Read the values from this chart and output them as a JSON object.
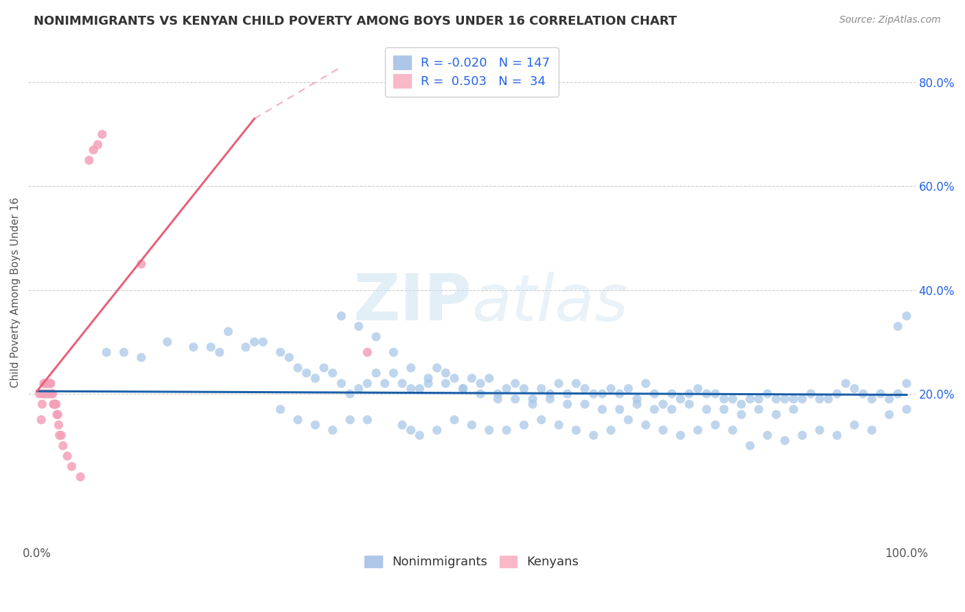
{
  "title": "NONIMMIGRANTS VS KENYAN CHILD POVERTY AMONG BOYS UNDER 16 CORRELATION CHART",
  "source": "Source: ZipAtlas.com",
  "ylabel": "Child Poverty Among Boys Under 16",
  "xlim": [
    -0.01,
    1.01
  ],
  "ylim": [
    -0.09,
    0.88
  ],
  "x_ticks": [
    0.0,
    0.1,
    0.2,
    0.3,
    0.4,
    0.5,
    0.6,
    0.7,
    0.8,
    0.9,
    1.0
  ],
  "x_tick_labels_show": [
    "0.0%",
    "",
    "",
    "",
    "",
    "",
    "",
    "",
    "",
    "",
    "100.0%"
  ],
  "y_ticks": [
    0.2,
    0.4,
    0.6,
    0.8
  ],
  "y_tick_labels": [
    "20.0%",
    "40.0%",
    "60.0%",
    "80.0%"
  ],
  "nonimmigrants_color": "#a8c8e8",
  "kenyans_color": "#f4a0b8",
  "trend_blue": "#1a5fa8",
  "trend_pink": "#e8607a",
  "watermark_color": "#d0e8f5",
  "background_color": "#ffffff",
  "grid_color": "#cccccc",
  "ni_x": [
    0.08,
    0.1,
    0.12,
    0.15,
    0.18,
    0.2,
    0.21,
    0.22,
    0.24,
    0.25,
    0.26,
    0.28,
    0.29,
    0.3,
    0.31,
    0.32,
    0.33,
    0.34,
    0.35,
    0.36,
    0.37,
    0.38,
    0.39,
    0.4,
    0.41,
    0.42,
    0.43,
    0.44,
    0.45,
    0.46,
    0.47,
    0.48,
    0.49,
    0.5,
    0.51,
    0.52,
    0.53,
    0.54,
    0.55,
    0.56,
    0.57,
    0.58,
    0.59,
    0.6,
    0.61,
    0.62,
    0.63,
    0.64,
    0.65,
    0.66,
    0.67,
    0.68,
    0.69,
    0.7,
    0.71,
    0.72,
    0.73,
    0.74,
    0.75,
    0.76,
    0.77,
    0.78,
    0.79,
    0.8,
    0.81,
    0.82,
    0.83,
    0.84,
    0.85,
    0.86,
    0.87,
    0.88,
    0.89,
    0.9,
    0.91,
    0.92,
    0.93,
    0.94,
    0.95,
    0.96,
    0.97,
    0.98,
    0.99,
    1.0,
    0.28,
    0.3,
    0.32,
    0.34,
    0.36,
    0.38,
    0.42,
    0.43,
    0.44,
    0.46,
    0.48,
    0.5,
    0.52,
    0.54,
    0.56,
    0.58,
    0.6,
    0.62,
    0.64,
    0.66,
    0.68,
    0.7,
    0.72,
    0.74,
    0.76,
    0.78,
    0.8,
    0.82,
    0.84,
    0.86,
    0.88,
    0.9,
    0.92,
    0.94,
    0.96,
    0.98,
    1.0,
    0.35,
    0.37,
    0.39,
    0.41,
    0.43,
    0.45,
    0.47,
    0.49,
    0.51,
    0.53,
    0.55,
    0.57,
    0.59,
    0.61,
    0.63,
    0.65,
    0.67,
    0.69,
    0.71,
    0.73,
    0.75,
    0.77,
    0.79,
    0.81,
    0.83,
    0.85,
    0.87,
    0.99,
    1.0
  ],
  "ni_y": [
    0.28,
    0.28,
    0.27,
    0.3,
    0.29,
    0.29,
    0.28,
    0.32,
    0.29,
    0.3,
    0.3,
    0.28,
    0.27,
    0.25,
    0.24,
    0.23,
    0.25,
    0.24,
    0.22,
    0.2,
    0.21,
    0.22,
    0.24,
    0.22,
    0.24,
    0.22,
    0.21,
    0.21,
    0.22,
    0.25,
    0.24,
    0.23,
    0.21,
    0.23,
    0.22,
    0.23,
    0.2,
    0.21,
    0.22,
    0.21,
    0.19,
    0.21,
    0.2,
    0.22,
    0.2,
    0.22,
    0.21,
    0.2,
    0.2,
    0.21,
    0.2,
    0.21,
    0.19,
    0.22,
    0.2,
    0.18,
    0.2,
    0.19,
    0.2,
    0.21,
    0.2,
    0.2,
    0.19,
    0.19,
    0.18,
    0.19,
    0.19,
    0.2,
    0.19,
    0.19,
    0.19,
    0.19,
    0.2,
    0.19,
    0.19,
    0.2,
    0.22,
    0.21,
    0.2,
    0.19,
    0.2,
    0.19,
    0.2,
    0.22,
    0.17,
    0.15,
    0.14,
    0.13,
    0.15,
    0.15,
    0.14,
    0.13,
    0.12,
    0.13,
    0.15,
    0.14,
    0.13,
    0.13,
    0.14,
    0.15,
    0.14,
    0.13,
    0.12,
    0.13,
    0.15,
    0.14,
    0.13,
    0.12,
    0.13,
    0.14,
    0.13,
    0.1,
    0.12,
    0.11,
    0.12,
    0.13,
    0.12,
    0.14,
    0.13,
    0.16,
    0.17,
    0.35,
    0.33,
    0.31,
    0.28,
    0.25,
    0.23,
    0.22,
    0.21,
    0.2,
    0.19,
    0.19,
    0.18,
    0.19,
    0.18,
    0.18,
    0.17,
    0.17,
    0.18,
    0.17,
    0.17,
    0.18,
    0.17,
    0.17,
    0.16,
    0.17,
    0.16,
    0.17,
    0.33,
    0.35
  ],
  "ke_x": [
    0.003,
    0.005,
    0.006,
    0.007,
    0.008,
    0.009,
    0.01,
    0.011,
    0.012,
    0.013,
    0.014,
    0.015,
    0.016,
    0.017,
    0.018,
    0.019,
    0.02,
    0.021,
    0.022,
    0.023,
    0.024,
    0.025,
    0.026,
    0.028,
    0.03,
    0.035,
    0.04,
    0.05,
    0.06,
    0.065,
    0.07,
    0.075,
    0.12,
    0.38
  ],
  "ke_y": [
    0.2,
    0.15,
    0.18,
    0.2,
    0.22,
    0.2,
    0.22,
    0.2,
    0.22,
    0.22,
    0.2,
    0.22,
    0.22,
    0.2,
    0.2,
    0.18,
    0.18,
    0.18,
    0.18,
    0.16,
    0.16,
    0.14,
    0.12,
    0.12,
    0.1,
    0.08,
    0.06,
    0.04,
    0.65,
    0.67,
    0.68,
    0.7,
    0.45,
    0.28
  ],
  "trend_ni_x0": 0.0,
  "trend_ni_x1": 1.0,
  "trend_ni_y0": 0.205,
  "trend_ni_y1": 0.198,
  "trend_ke_x0": 0.0,
  "trend_ke_x1": 0.25,
  "trend_ke_y0": 0.205,
  "trend_ke_y1": 0.73
}
